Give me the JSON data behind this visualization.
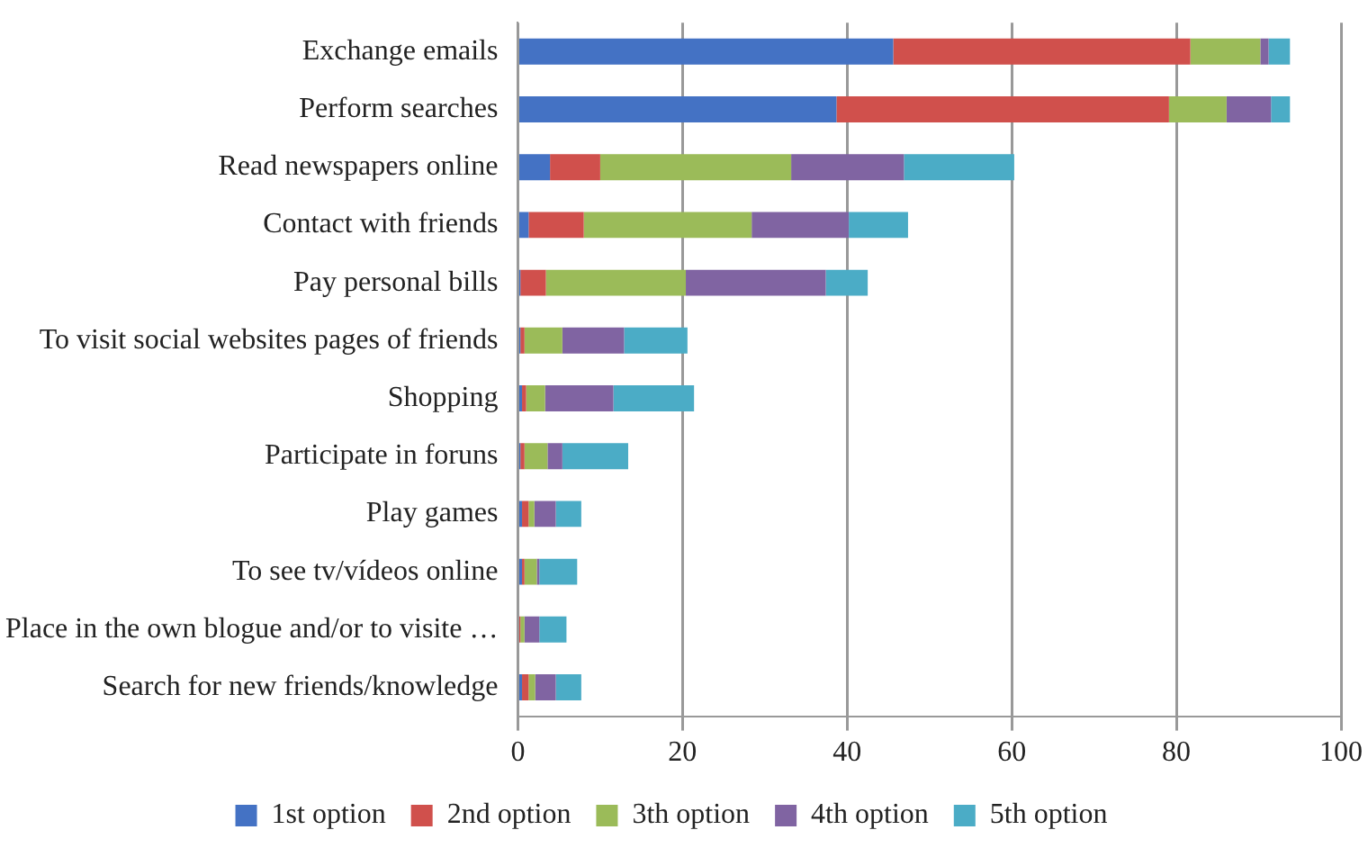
{
  "chart_data": {
    "type": "bar",
    "orientation": "horizontal",
    "stacked": true,
    "categories": [
      "Exchange emails",
      "Perform searches",
      "Read newspapers online",
      "Contact with friends",
      "Pay personal bills",
      "To visit social websites pages of friends",
      "Shopping",
      "Participate in foruns",
      "Play games",
      "To see tv/vídeos online",
      "Place in the own blogue and/or to visite …",
      "Search for new friends/knowledge"
    ],
    "series": [
      {
        "name": "1st option",
        "color": "#4472c4",
        "values": [
          45.6,
          38.7,
          3.9,
          1.3,
          0.3,
          0.3,
          0.5,
          0.3,
          0.5,
          0.5,
          0,
          0.5
        ]
      },
      {
        "name": "2nd option",
        "color": "#d0504c",
        "values": [
          36.1,
          40.4,
          6.1,
          6.7,
          3.1,
          0.5,
          0.5,
          0.5,
          0.8,
          0.3,
          0.3,
          0.8
        ]
      },
      {
        "name": "3th option",
        "color": "#9bbb59",
        "values": [
          8.5,
          7,
          23.2,
          20.4,
          17,
          4.6,
          2.3,
          2.8,
          0.7,
          1.5,
          0.5,
          0.8
        ]
      },
      {
        "name": "4th option",
        "color": "#8064a2",
        "values": [
          1,
          5.4,
          13.7,
          11.8,
          17,
          7.5,
          8.3,
          1.8,
          2.6,
          0.3,
          1.8,
          2.5
        ]
      },
      {
        "name": "5th option",
        "color": "#4bacc6",
        "values": [
          2.6,
          2.3,
          13.4,
          7.2,
          5.1,
          7.7,
          9.8,
          8,
          3.1,
          4.6,
          3.3,
          3.1
        ]
      }
    ],
    "xlim": [
      0,
      100
    ],
    "xticks": [
      0,
      20,
      40,
      60,
      80,
      100
    ],
    "grid": "x",
    "legend": "bottom"
  }
}
